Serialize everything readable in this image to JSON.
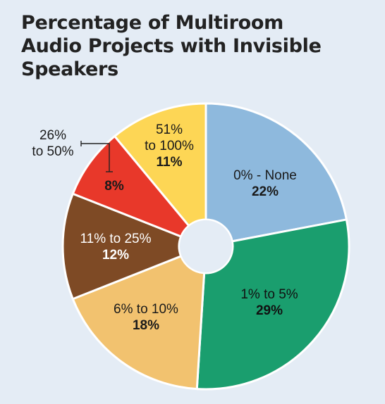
{
  "chart_data": {
    "type": "pie",
    "title_lines": [
      "Percentage of Multiroom",
      "Audio Projects with Invisible",
      "Speakers"
    ],
    "slices": [
      {
        "label_lines": [
          "0% - None"
        ],
        "value": 22,
        "value_label": "22%",
        "color": "#8eb9dd"
      },
      {
        "label_lines": [
          "1% to 5%"
        ],
        "value": 29,
        "value_label": "29%",
        "color": "#1a9e6e"
      },
      {
        "label_lines": [
          "6% to 10%"
        ],
        "value": 18,
        "value_label": "18%",
        "color": "#f2c26f"
      },
      {
        "label_lines": [
          "11% to 25%"
        ],
        "value": 12,
        "value_label": "12%",
        "color": "#7e4a25"
      },
      {
        "label_lines": [
          "26%",
          "to 50%"
        ],
        "value": 8,
        "value_label": "8%",
        "color": "#e8382a"
      },
      {
        "label_lines": [
          "51%",
          "to 100%"
        ],
        "value": 11,
        "value_label": "11%",
        "color": "#fdd655"
      }
    ]
  }
}
